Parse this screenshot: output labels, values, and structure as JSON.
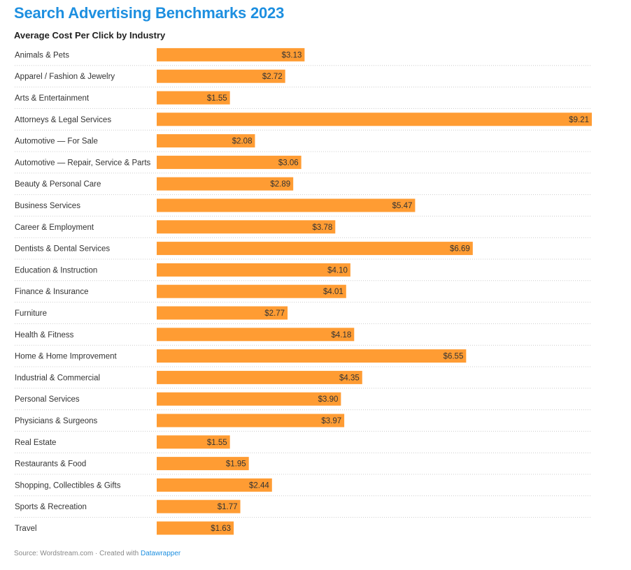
{
  "header": {
    "title": "Search Advertising Benchmarks 2023",
    "subtitle": "Average Cost Per Click by Industry"
  },
  "footer": {
    "source_text": "Source: Wordstream.com · Created with ",
    "link_text": "Datawrapper"
  },
  "colors": {
    "bar": "#ff9c33",
    "title": "#1d8fe0",
    "divider": "#cccccc"
  },
  "chart_data": {
    "type": "bar",
    "orientation": "horizontal",
    "title": "Search Advertising Benchmarks 2023",
    "subtitle": "Average Cost Per Click by Industry",
    "xlim": [
      0,
      9.21
    ],
    "grid": false,
    "value_prefix": "$",
    "categories": [
      "Animals & Pets",
      "Apparel / Fashion & Jewelry",
      "Arts & Entertainment",
      "Attorneys & Legal Services",
      "Automotive — For Sale",
      "Automotive — Repair, Service & Parts",
      "Beauty & Personal Care",
      "Business Services",
      "Career & Employment",
      "Dentists & Dental Services",
      "Education & Instruction",
      "Finance & Insurance",
      "Furniture",
      "Health & Fitness",
      "Home & Home Improvement",
      "Industrial & Commercial",
      "Personal Services",
      "Physicians & Surgeons",
      "Real Estate",
      "Restaurants & Food",
      "Shopping, Collectibles & Gifts",
      "Sports & Recreation",
      "Travel"
    ],
    "values": [
      3.13,
      2.72,
      1.55,
      9.21,
      2.08,
      3.06,
      2.89,
      5.47,
      3.78,
      6.69,
      4.1,
      4.01,
      2.77,
      4.18,
      6.55,
      4.35,
      3.9,
      3.97,
      1.55,
      1.95,
      2.44,
      1.77,
      1.63
    ],
    "value_labels": [
      "$3.13",
      "$2.72",
      "$1.55",
      "$9.21",
      "$2.08",
      "$3.06",
      "$2.89",
      "$5.47",
      "$3.78",
      "$6.69",
      "$4.10",
      "$4.01",
      "$2.77",
      "$4.18",
      "$6.55",
      "$4.35",
      "$3.90",
      "$3.97",
      "$1.55",
      "$1.95",
      "$2.44",
      "$1.77",
      "$1.63"
    ]
  }
}
